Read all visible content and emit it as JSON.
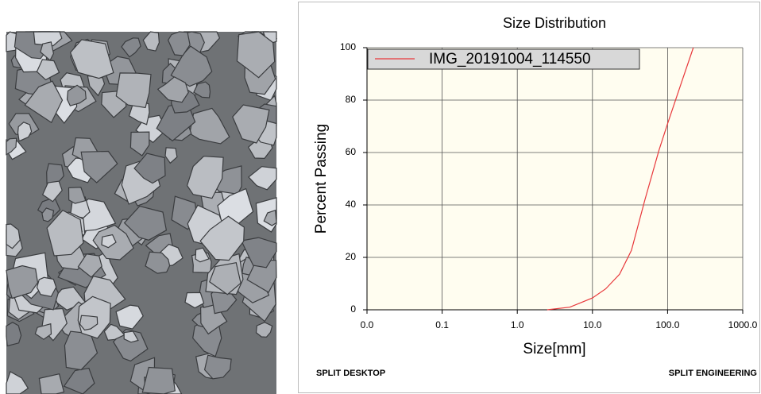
{
  "chart_data": {
    "type": "line",
    "title": "Size Distribution",
    "x_label": "Size[mm]",
    "y_label": "Percent Passing",
    "x": [
      2.5,
      5,
      10,
      15,
      23,
      33,
      50,
      77,
      100,
      150,
      220
    ],
    "series": [
      {
        "name": "IMG_20191004_114550",
        "color": "#e8383b",
        "values": [
          0,
          1,
          4.5,
          8,
          13.6,
          22.7,
          42,
          61,
          71,
          86,
          100
        ]
      }
    ],
    "xscale": "log",
    "xlim": [
      0.01,
      1000
    ],
    "xticks": [
      {
        "value": 0.01,
        "label": "0.0"
      },
      {
        "value": 0.1,
        "label": "0.1"
      },
      {
        "value": 1,
        "label": "1.0"
      },
      {
        "value": 10,
        "label": "10.0"
      },
      {
        "value": 100,
        "label": "100.0"
      },
      {
        "value": 1000,
        "label": "1000.0"
      }
    ],
    "ylim": [
      0,
      100
    ],
    "yticks": [
      0,
      20,
      40,
      60,
      80,
      100
    ],
    "grid": true,
    "legend": "upper left"
  },
  "footer": {
    "left_logo": "SPLIT DESKTOP",
    "right_logo": "SPLIT ENGINEERING"
  }
}
